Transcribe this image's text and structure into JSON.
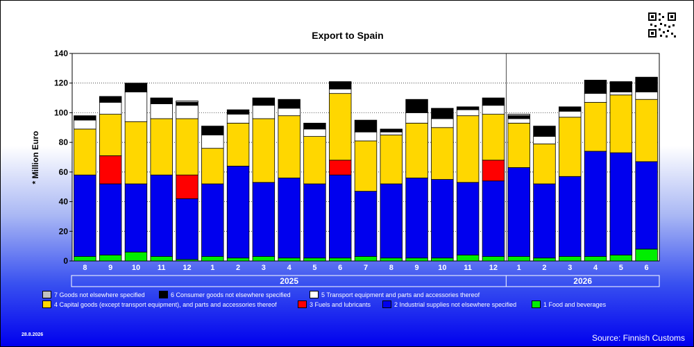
{
  "chart_data": {
    "type": "bar",
    "stacked": true,
    "title": "Export to Spain",
    "ylabel": "* Million Euro",
    "ylim": [
      0,
      140
    ],
    "yticks": [
      0,
      20,
      40,
      60,
      80,
      100,
      120,
      140
    ],
    "categories": [
      "8",
      "9",
      "10",
      "11",
      "12",
      "1",
      "2",
      "3",
      "4",
      "5",
      "6",
      "7",
      "8",
      "9",
      "10",
      "11",
      "12",
      "1",
      "2",
      "3",
      "4",
      "5",
      "6"
    ],
    "year_labels": [
      {
        "label": "2025",
        "from": 0,
        "to": 16
      },
      {
        "label": "2026",
        "from": 17,
        "to": 22
      }
    ],
    "series": [
      {
        "name": "1 Food and beverages",
        "color": "#00ee00",
        "values": [
          3,
          4,
          6,
          3,
          1,
          3,
          2,
          3,
          2,
          2,
          2,
          3,
          2,
          2,
          2,
          4,
          3,
          3,
          2,
          3,
          3,
          4,
          8
        ]
      },
      {
        "name": "2 Industrial supplies not elsewhere specified",
        "color": "#0000ee",
        "values": [
          55,
          48,
          46,
          55,
          41,
          49,
          62,
          50,
          54,
          50,
          56,
          44,
          50,
          54,
          53,
          49,
          51,
          60,
          50,
          54,
          71,
          69,
          59
        ]
      },
      {
        "name": "3 Fuels and lubricants",
        "color": "#ff0000",
        "values": [
          0,
          19,
          0,
          0,
          16,
          0,
          0,
          0,
          0,
          0,
          10,
          0,
          0,
          0,
          0,
          0,
          14,
          0,
          0,
          0,
          0,
          0,
          0
        ]
      },
      {
        "name": "4 Capital goods (except transport equipment), and parts and accessories thereof",
        "color": "#ffd700",
        "values": [
          31,
          28,
          42,
          38,
          38,
          24,
          29,
          43,
          42,
          32,
          45,
          34,
          33,
          37,
          35,
          45,
          31,
          30,
          27,
          40,
          33,
          39,
          42
        ]
      },
      {
        "name": "5  Transport equipment and parts and accessories thereof",
        "color": "#ffffff",
        "values": [
          6,
          8,
          20,
          10,
          9,
          9,
          6,
          9,
          5,
          5,
          3,
          6,
          2,
          7,
          6,
          4,
          6,
          3,
          5,
          4,
          6,
          2,
          5
        ]
      },
      {
        "name": "6 Consumer goods not elsewhere specified",
        "color": "#000000",
        "values": [
          3,
          4,
          6,
          4,
          2,
          6,
          3,
          5,
          6,
          4,
          5,
          8,
          2,
          9,
          7,
          2,
          5,
          2,
          7,
          3,
          9,
          7,
          10
        ]
      },
      {
        "name": "7 Goods not elsewhere specified",
        "color": "#c0c0c0",
        "values": [
          0,
          0,
          0,
          0,
          1,
          0,
          0,
          0,
          0,
          0,
          0,
          0,
          0,
          0,
          0,
          0,
          0,
          1,
          0,
          0,
          0,
          0,
          0
        ]
      }
    ],
    "legend_order": [
      6,
      5,
      4,
      3,
      2,
      1,
      0
    ],
    "legend_position": "bottom",
    "grid": true
  },
  "date_label": "28.8.2026",
  "source_label": "Source: Finnish Customs"
}
